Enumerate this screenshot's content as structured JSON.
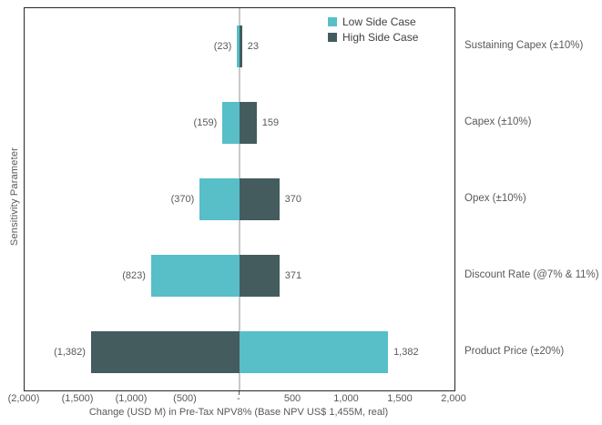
{
  "chart_data": {
    "type": "bar",
    "variant": "tornado",
    "orientation": "horizontal",
    "title": "",
    "xlabel": "Change (USD M) in Pre-Tax NPV8% (Base NPV US$ 1,455M, real)",
    "ylabel": "Sensitivity Parameter",
    "xlim": [
      -2000,
      2000
    ],
    "xticks": [
      {
        "value": -2000,
        "label": "(2,000)"
      },
      {
        "value": -1500,
        "label": "(1,500)"
      },
      {
        "value": -1000,
        "label": "(1,000)"
      },
      {
        "value": -500,
        "label": "(500)"
      },
      {
        "value": 0,
        "label": "-"
      },
      {
        "value": 500,
        "label": "500"
      },
      {
        "value": 1000,
        "label": "1,000"
      },
      {
        "value": 1500,
        "label": "1,500"
      },
      {
        "value": 2000,
        "label": "2,000"
      }
    ],
    "categories": [
      "Sustaining Capex (±10%)",
      "Capex (±10%)",
      "Opex (±10%)",
      "Discount Rate (@7% & 11%)",
      "Product Price (±20%)"
    ],
    "series": [
      {
        "name": "Low Side Case",
        "color": "#58BEC8",
        "values": [
          -23,
          -159,
          -370,
          -823,
          1382
        ],
        "labels": [
          "(23)",
          "(159)",
          "(370)",
          "(823)",
          "1,382"
        ]
      },
      {
        "name": "High Side Case",
        "color": "#445C5E",
        "values": [
          23,
          159,
          370,
          371,
          -1382
        ],
        "labels": [
          "23",
          "159",
          "370",
          "371",
          "(1,382)"
        ]
      }
    ],
    "legend_position": "top-right",
    "gridlines": "zero-axis-only",
    "colors": {
      "axis_text": "#595959",
      "data_label_text": "#595959",
      "legend_text": "#404040",
      "plot_border": "#262626",
      "zero_line": "#C9C9C9",
      "background": "#FFFFFF"
    }
  }
}
